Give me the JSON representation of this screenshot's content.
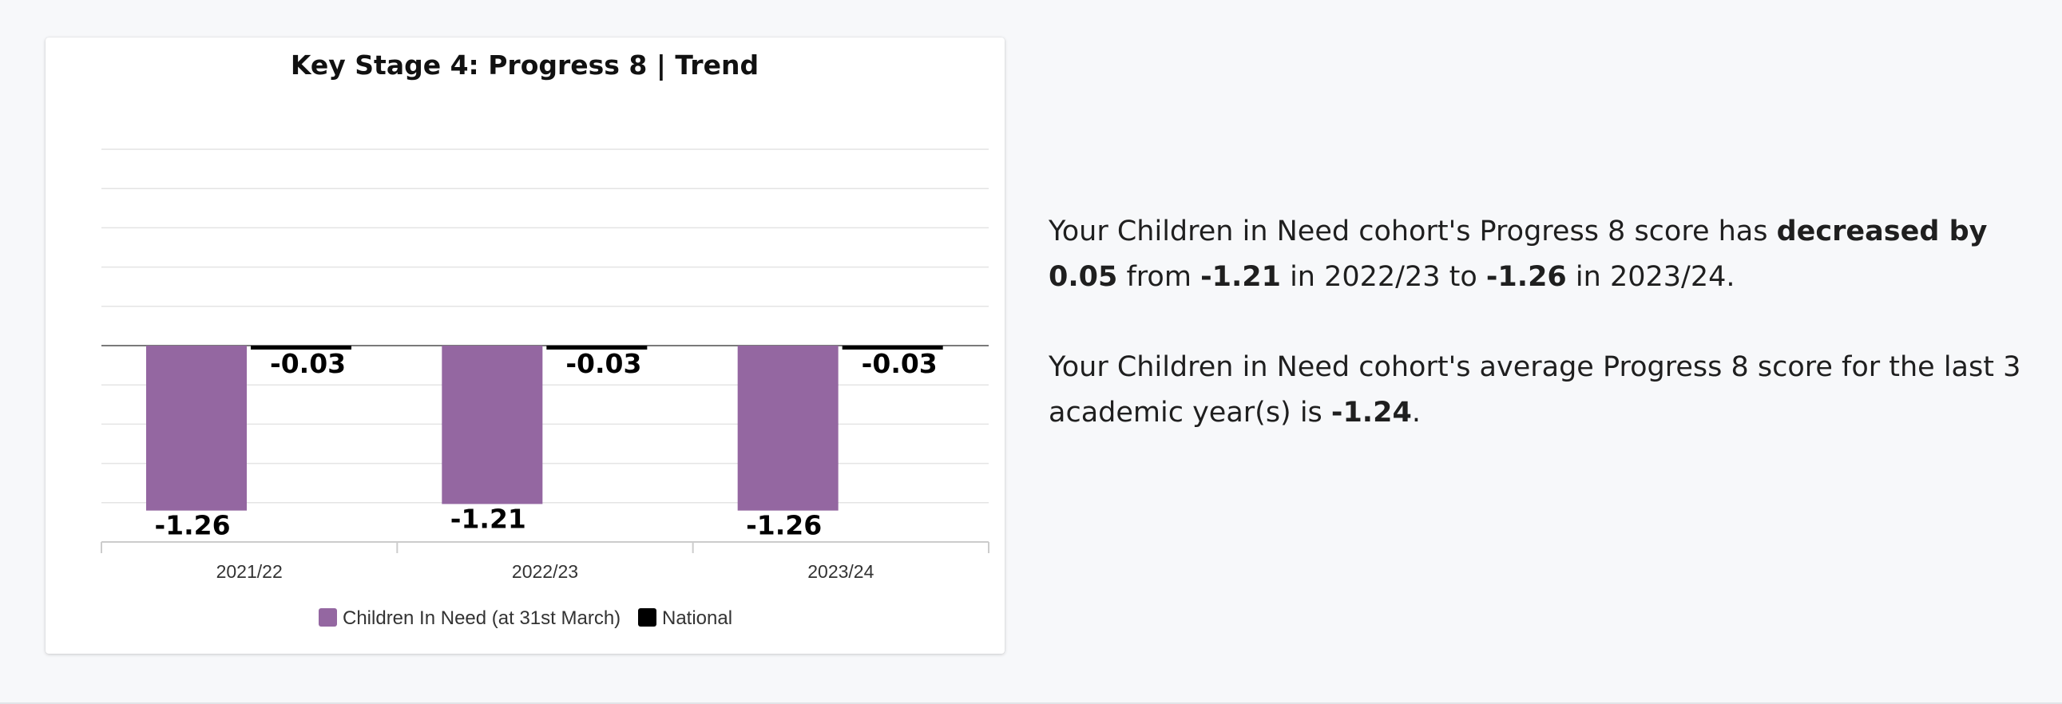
{
  "chart_data": {
    "type": "bar",
    "title": "Key Stage 4: Progress 8 | Trend",
    "categories": [
      "2021/22",
      "2022/23",
      "2023/24"
    ],
    "series": [
      {
        "name": "Children In Need (at 31st March)",
        "values": [
          -1.26,
          -1.21,
          -1.26
        ],
        "color": "#9467a1"
      },
      {
        "name": "National",
        "values": [
          -0.03,
          -0.03,
          -0.03
        ],
        "color": "#000000"
      }
    ],
    "value_labels": [
      [
        "-1.26",
        "-1.21",
        "-1.26"
      ],
      [
        "-0.03",
        "-0.03",
        "-0.03"
      ]
    ],
    "xlabel": "",
    "ylabel": "",
    "ylim": [
      -1.5,
      1.5
    ],
    "grid": true,
    "legend_position": "bottom-center"
  },
  "summary": {
    "p1": {
      "t1": "Your Children in Need cohort's Progress 8 score has ",
      "b1": "decreased by 0.05",
      "t2": " from ",
      "b2": "-1.21",
      "t3": " in 2022/23 to ",
      "b3": "-1.26",
      "t4": " in 2023/24."
    },
    "p2": {
      "t1": "Your Children in Need cohort's average Progress 8 score for the last 3 academic year(s) is ",
      "b1": "-1.24",
      "t2": "."
    }
  }
}
